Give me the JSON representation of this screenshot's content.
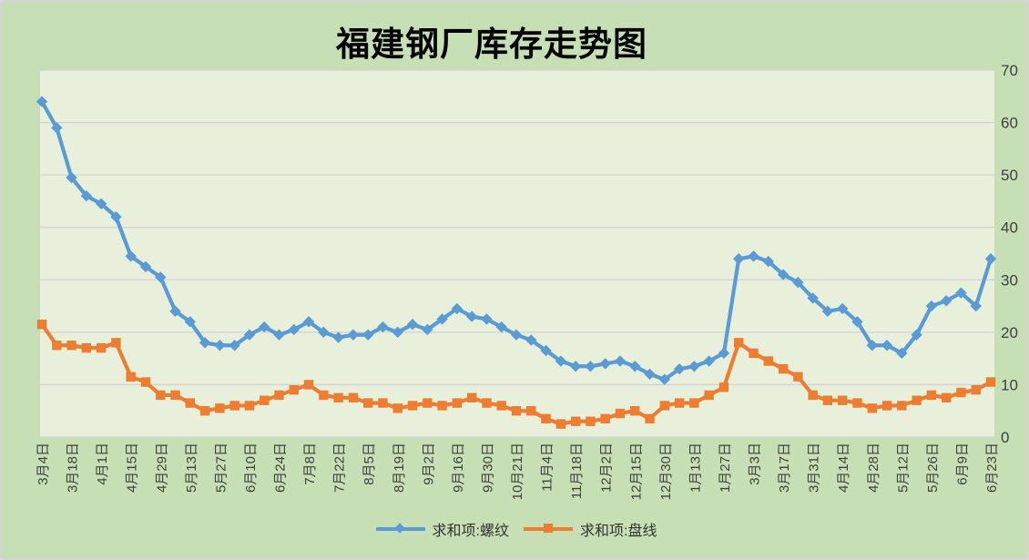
{
  "title": "福建钢厂库存走势图",
  "colors": {
    "outer_background": "#C7DFB4",
    "plot_background": "#E8F0DC",
    "gridline": "#D2D2D2",
    "axis_text": "#404040",
    "series_luowen": "#5B9BD5",
    "series_panxian": "#ED7D31"
  },
  "y_axis": {
    "side": "right",
    "tick_labels": [
      "0",
      "10",
      "20",
      "30",
      "40",
      "50",
      "60",
      "70"
    ]
  },
  "legend": {
    "items": [
      {
        "label": "求和项:螺纹",
        "marker": "diamond",
        "color": "#5B9BD5"
      },
      {
        "label": "求和项:盘线",
        "marker": "square",
        "color": "#ED7D31"
      }
    ]
  },
  "chart_data": {
    "type": "line",
    "title": "福建钢厂库存走势图",
    "xlabel": "",
    "ylabel": "",
    "ylim": [
      0,
      70
    ],
    "y_ticks": [
      0,
      10,
      20,
      30,
      40,
      50,
      60,
      70
    ],
    "grid": true,
    "legend_position": "bottom",
    "y_axis_side": "right",
    "x_label_every_nth_point": 2,
    "x_labels_visible": [
      "3月4日",
      "3月18日",
      "4月1日",
      "4月15日",
      "4月29日",
      "5月13日",
      "5月27日",
      "6月10日",
      "6月24日",
      "7月8日",
      "7月22日",
      "8月5日",
      "8月19日",
      "9月2日",
      "9月16日",
      "9月30日",
      "10月21日",
      "11月4日",
      "11月18日",
      "12月2日",
      "12月15日",
      "12月30日",
      "1月13日",
      "1月27日",
      "3月3日",
      "3月17日",
      "3月31日",
      "4月14日",
      "4月28日",
      "5月12日",
      "5月26日",
      "6月9日",
      "6月23日"
    ],
    "series": [
      {
        "name": "求和项:螺纹",
        "color": "#5B9BD5",
        "marker": "diamond",
        "values": [
          64,
          59,
          49.5,
          46,
          44.5,
          42,
          34.5,
          32.5,
          30.5,
          24,
          22,
          18,
          17.5,
          17.5,
          19.5,
          21,
          19.5,
          20.5,
          22,
          20,
          19,
          19.5,
          19.5,
          21,
          20,
          21.5,
          20.5,
          22.5,
          24.5,
          23,
          22.5,
          21,
          19.5,
          18.5,
          16.5,
          14.5,
          13.5,
          13.5,
          14,
          14.5,
          13.5,
          12,
          11,
          13,
          13.5,
          14.5,
          16,
          34,
          34.5,
          33.5,
          31,
          29.5,
          26.5,
          24,
          24.5,
          22,
          17.5,
          17.5,
          16,
          19.5,
          25,
          26,
          27.5,
          25,
          34
        ]
      },
      {
        "name": "求和项:盘线",
        "color": "#ED7D31",
        "marker": "square",
        "values": [
          21.5,
          17.5,
          17.5,
          17,
          17,
          18,
          11.5,
          10.5,
          8,
          8,
          6.5,
          5,
          5.5,
          6,
          6,
          7,
          8,
          9,
          10,
          8,
          7.5,
          7.5,
          6.5,
          6.5,
          5.5,
          6,
          6.5,
          6,
          6.5,
          7.5,
          6.5,
          6,
          5,
          5,
          3.5,
          2.5,
          3,
          3,
          3.5,
          4.5,
          5,
          3.5,
          6,
          6.5,
          6.5,
          8,
          9.5,
          18,
          16,
          14.5,
          13,
          11.5,
          8,
          7,
          7,
          6.5,
          5.5,
          6,
          6,
          7,
          8,
          7.5,
          8.5,
          9,
          10.5
        ]
      }
    ]
  }
}
